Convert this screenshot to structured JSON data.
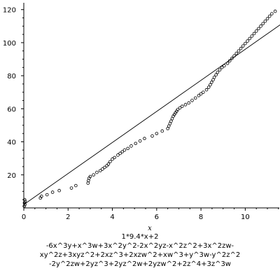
{
  "chart_data": {
    "type": "scatter",
    "xlabel": "x",
    "ylabel": "",
    "title": "",
    "xlim": [
      0,
      11.6
    ],
    "ylim": [
      0,
      122
    ],
    "x_ticks": [
      "0",
      "2",
      "4",
      "6",
      "8",
      "10"
    ],
    "y_ticks": [
      "20",
      "40",
      "60",
      "80",
      "100",
      "120"
    ],
    "grid": false,
    "legend": "none",
    "caption_lines": [
      "1*9.4*x+2",
      "-6x^3y+x^3w+3x^2y^2-2x^2yz-x^2z^2+3x^2zw-",
      "xy^2z+3xyz^2+2xz^3+2xzw^2+xw^3+y^3w-y^2z^2",
      "-2y^2zw+2yz^3+2yz^2w+2yzw^2+2z^4+3z^3w"
    ],
    "line": {
      "x": [
        0,
        11.6
      ],
      "y": [
        2,
        111.04
      ]
    },
    "points": [
      [
        0.02,
        1
      ],
      [
        0.03,
        3
      ],
      [
        0.04,
        5
      ],
      [
        0.05,
        2
      ],
      [
        0.06,
        4
      ],
      [
        0.75,
        6
      ],
      [
        0.8,
        7
      ],
      [
        1.05,
        8
      ],
      [
        1.3,
        9.5
      ],
      [
        1.6,
        10.5
      ],
      [
        2.15,
        12
      ],
      [
        2.35,
        13.5
      ],
      [
        2.9,
        15
      ],
      [
        2.92,
        16.5
      ],
      [
        2.95,
        18
      ],
      [
        3.0,
        19
      ],
      [
        3.15,
        20
      ],
      [
        3.3,
        21.5
      ],
      [
        3.45,
        22.5
      ],
      [
        3.55,
        23.5
      ],
      [
        3.65,
        24.5
      ],
      [
        3.75,
        25.5
      ],
      [
        3.82,
        26.5
      ],
      [
        3.9,
        28
      ],
      [
        4.0,
        29.5
      ],
      [
        4.1,
        30.5
      ],
      [
        4.25,
        32
      ],
      [
        4.35,
        33
      ],
      [
        4.45,
        34
      ],
      [
        4.55,
        35
      ],
      [
        4.7,
        36
      ],
      [
        4.85,
        37.5
      ],
      [
        5.05,
        39
      ],
      [
        5.25,
        40.5
      ],
      [
        5.45,
        42
      ],
      [
        5.8,
        43.5
      ],
      [
        6.0,
        45
      ],
      [
        6.25,
        46.5
      ],
      [
        6.5,
        48
      ],
      [
        6.55,
        49.5
      ],
      [
        6.6,
        51
      ],
      [
        6.65,
        52.5
      ],
      [
        6.7,
        54
      ],
      [
        6.75,
        55.5
      ],
      [
        6.8,
        56.5
      ],
      [
        6.85,
        57.5
      ],
      [
        6.9,
        58.5
      ],
      [
        6.95,
        59.5
      ],
      [
        7.05,
        60.5
      ],
      [
        7.15,
        61.5
      ],
      [
        7.3,
        62.5
      ],
      [
        7.45,
        63.5
      ],
      [
        7.6,
        65
      ],
      [
        7.75,
        66.5
      ],
      [
        7.9,
        68
      ],
      [
        8.0,
        69
      ],
      [
        8.1,
        70
      ],
      [
        8.25,
        71.5
      ],
      [
        8.35,
        73
      ],
      [
        8.42,
        74.5
      ],
      [
        8.48,
        76
      ],
      [
        8.55,
        77.5
      ],
      [
        8.6,
        79
      ],
      [
        8.68,
        80.5
      ],
      [
        8.75,
        82
      ],
      [
        8.85,
        83.5
      ],
      [
        8.95,
        85
      ],
      [
        9.05,
        86
      ],
      [
        9.2,
        87.5
      ],
      [
        9.3,
        89
      ],
      [
        9.4,
        90.5
      ],
      [
        9.5,
        92
      ],
      [
        9.6,
        93.5
      ],
      [
        9.7,
        95
      ],
      [
        9.8,
        96.5
      ],
      [
        9.9,
        98
      ],
      [
        10.0,
        99.5
      ],
      [
        10.1,
        101
      ],
      [
        10.2,
        102.5
      ],
      [
        10.3,
        104
      ],
      [
        10.4,
        105.5
      ],
      [
        10.5,
        107
      ],
      [
        10.6,
        108.5
      ],
      [
        10.7,
        110
      ],
      [
        10.8,
        111.5
      ],
      [
        10.9,
        113
      ],
      [
        11.0,
        114.5
      ],
      [
        11.1,
        116
      ],
      [
        11.2,
        117.5
      ],
      [
        11.35,
        119
      ]
    ]
  }
}
